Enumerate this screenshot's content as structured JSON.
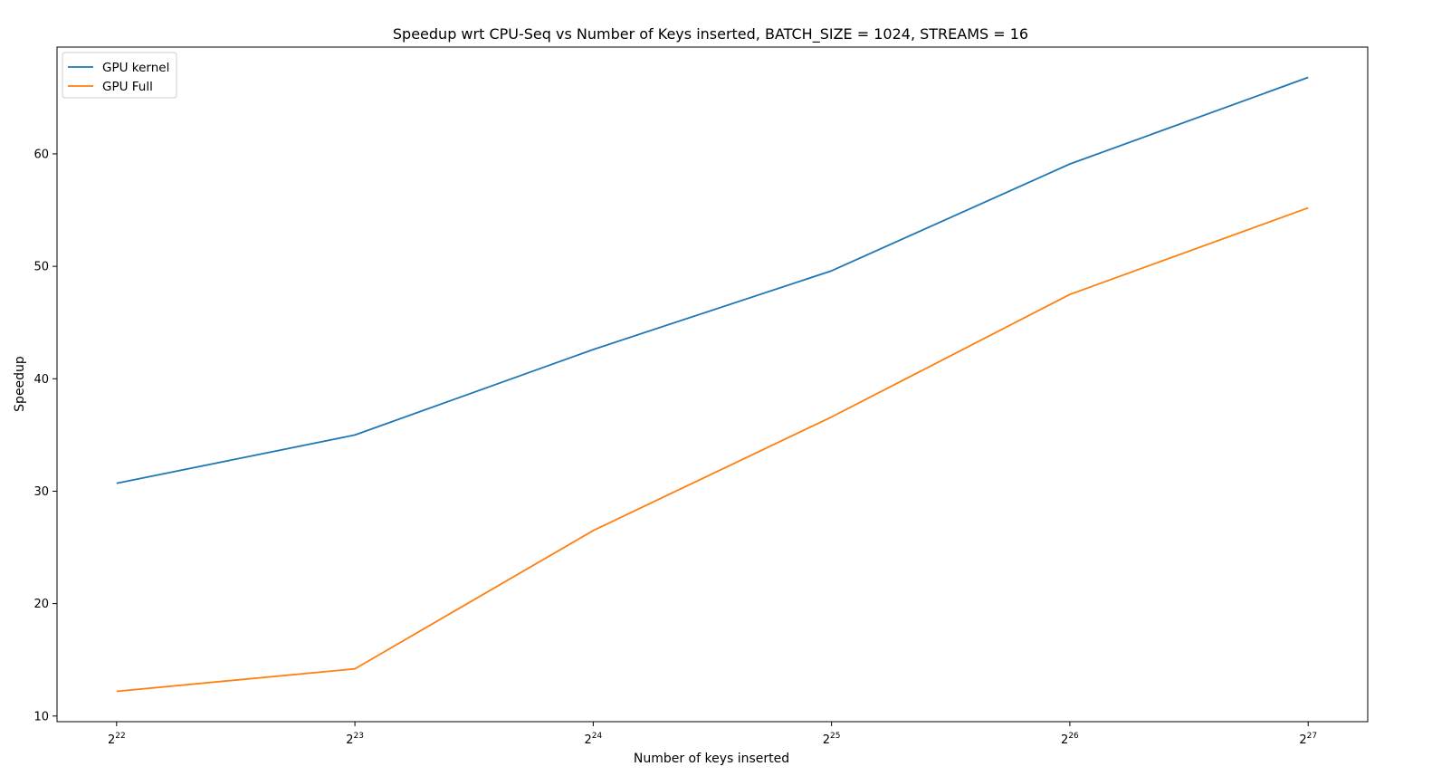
{
  "chart_data": {
    "type": "line",
    "title": "Speedup wrt CPU-Seq vs Number of Keys inserted, BATCH_SIZE = 1024, STREAMS = 16",
    "xlabel": "Number of keys inserted",
    "ylabel": "Speedup",
    "x_scale": "log2",
    "x": [
      4194304,
      8388608,
      16777216,
      33554432,
      67108864,
      134217728
    ],
    "x_ticks": [
      {
        "base": "2",
        "exp": "22",
        "value": 4194304
      },
      {
        "base": "2",
        "exp": "23",
        "value": 8388608
      },
      {
        "base": "2",
        "exp": "24",
        "value": 16777216
      },
      {
        "base": "2",
        "exp": "25",
        "value": 33554432
      },
      {
        "base": "2",
        "exp": "26",
        "value": 67108864
      },
      {
        "base": "2",
        "exp": "27",
        "value": 134217728
      }
    ],
    "y_ticks": [
      10,
      20,
      30,
      40,
      50,
      60
    ],
    "ylim": [
      9.5,
      69.5
    ],
    "grid": false,
    "legend_position": "top-left",
    "series": [
      {
        "name": "GPU kernel",
        "color": "#1f77b4",
        "values": [
          30.7,
          35.0,
          42.6,
          49.6,
          59.1,
          66.8
        ]
      },
      {
        "name": "GPU Full",
        "color": "#ff7f0e",
        "values": [
          12.2,
          14.2,
          26.5,
          36.6,
          47.5,
          55.2
        ]
      }
    ]
  }
}
